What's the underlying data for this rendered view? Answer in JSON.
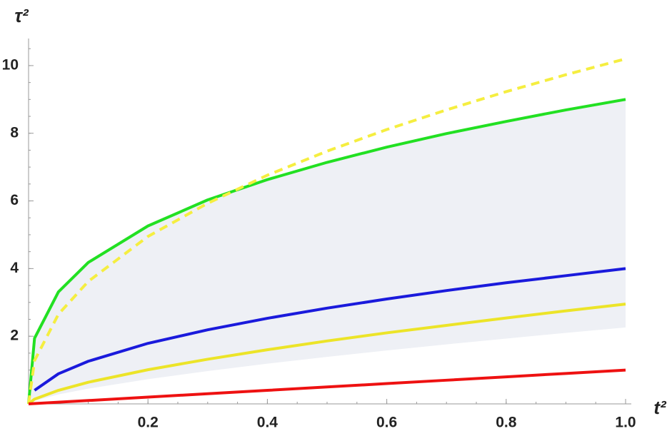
{
  "chart_data": {
    "type": "line",
    "x_label": "t²",
    "y_label": "τ²",
    "x": [
      0,
      0.01,
      0.05,
      0.1,
      0.2,
      0.3,
      0.4,
      0.5,
      0.6,
      0.7,
      0.8,
      0.9,
      1.0
    ],
    "series": [
      {
        "color": "#22e022",
        "dash": false,
        "values": [
          0,
          1.94,
          3.31,
          4.18,
          5.26,
          6.03,
          6.63,
          7.14,
          7.59,
          7.99,
          8.35,
          8.69,
          9.0
        ]
      },
      {
        "color": "#f5ee40",
        "dash": true,
        "values": [
          0,
          1.28,
          2.65,
          3.62,
          4.95,
          5.93,
          6.76,
          7.47,
          8.11,
          8.69,
          9.23,
          9.73,
          10.2
        ]
      },
      {
        "color": "#1a1adc",
        "dash": false,
        "values": [
          null,
          0.4,
          0.89,
          1.26,
          1.79,
          2.19,
          2.53,
          2.83,
          3.1,
          3.35,
          3.58,
          3.79,
          4.0
        ]
      },
      {
        "color": "#ece428",
        "dash": false,
        "values": [
          0,
          0.14,
          0.4,
          0.64,
          1.01,
          1.32,
          1.6,
          1.86,
          2.1,
          2.32,
          2.54,
          2.75,
          2.95
        ]
      },
      {
        "color": "#ee1111",
        "dash": false,
        "values": [
          0,
          0.01,
          0.05,
          0.1,
          0.2,
          0.3,
          0.4,
          0.5,
          0.6,
          0.7,
          0.8,
          0.9,
          1.0
        ]
      }
    ],
    "band": {
      "color": "#eef0f5",
      "lower": [
        0,
        0.09,
        0.28,
        0.45,
        0.73,
        0.97,
        1.19,
        1.39,
        1.58,
        1.76,
        1.93,
        2.1,
        2.26
      ]
    },
    "xlim": [
      0,
      1.0
    ],
    "ylim": [
      0,
      10.8
    ],
    "xticks": [
      0.2,
      0.4,
      0.6,
      0.8,
      {
        "value": 1,
        "label": "1.0"
      }
    ],
    "yticks": [
      2,
      4,
      6,
      8,
      10
    ]
  }
}
